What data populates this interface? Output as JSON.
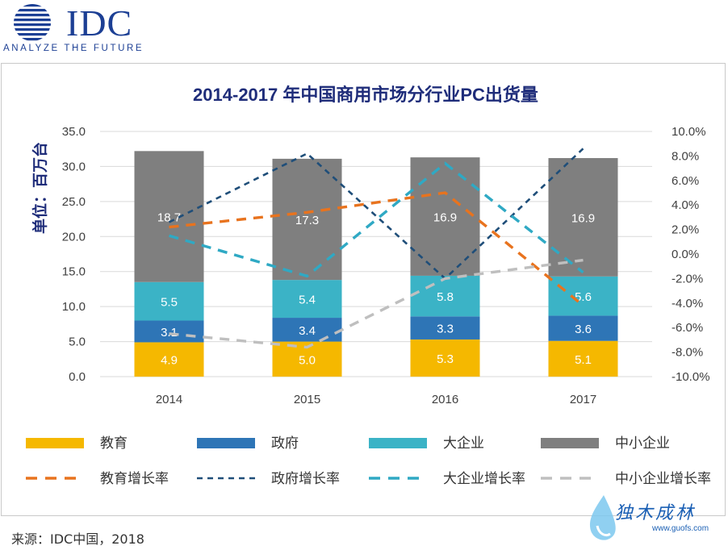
{
  "logo": {
    "name": "IDC",
    "tagline": "ANALYZE THE FUTURE"
  },
  "source": "来源：IDC中国，2018",
  "watermark": {
    "text": "独木成林",
    "url": "www.guofs.com"
  },
  "colors": {
    "edu": "#f5b800",
    "gov": "#2e75b6",
    "large": "#3bb3c6",
    "sme": "#7f7f7f",
    "edu_rate": "#e8731e",
    "gov_rate": "#1f4e79",
    "large_rate": "#2fa9c4",
    "sme_rate": "#bfbfbf",
    "title": "#1f2d7a",
    "axis_text": "#404040",
    "grid": "#d9d9d9"
  },
  "chart_data": {
    "type": "bar",
    "stacked": true,
    "title": "2014-2017 年中国商用市场分行业PC出货量",
    "ylabel": "单位：百万台",
    "categories": [
      "2014",
      "2015",
      "2016",
      "2017"
    ],
    "ylim": [
      0,
      35
    ],
    "yticks": [
      "35.0",
      "30.0",
      "25.0",
      "20.0",
      "15.0",
      "10.0",
      "5.0",
      "0.0"
    ],
    "y2lim": [
      -10,
      10
    ],
    "y2ticks": [
      "10.0%",
      "8.0%",
      "6.0%",
      "4.0%",
      "2.0%",
      "0.0%",
      "-2.0%",
      "-4.0%",
      "-6.0%",
      "-8.0%",
      "-10.0%"
    ],
    "series": [
      {
        "name": "教育",
        "key": "edu",
        "values": [
          4.9,
          5.0,
          5.3,
          5.1
        ],
        "labels": [
          "4.9",
          "5.0",
          "5.3",
          "5.1"
        ]
      },
      {
        "name": "政府",
        "key": "gov",
        "values": [
          3.1,
          3.4,
          3.3,
          3.6
        ],
        "labels": [
          "3.1",
          "3.4",
          "3.3",
          "3.6"
        ]
      },
      {
        "name": "大企业",
        "key": "large",
        "values": [
          5.5,
          5.4,
          5.8,
          5.6
        ],
        "labels": [
          "5.5",
          "5.4",
          "5.8",
          "5.6"
        ]
      },
      {
        "name": "中小企业",
        "key": "sme",
        "values": [
          18.7,
          17.3,
          16.9,
          16.9
        ],
        "labels": [
          "18.7",
          "17.3",
          "16.9",
          "16.9"
        ]
      }
    ],
    "line_series": [
      {
        "name": "教育增长率",
        "key": "edu_rate",
        "values": [
          2.2,
          3.4,
          5.0,
          -4.2
        ]
      },
      {
        "name": "政府增长率",
        "key": "gov_rate",
        "values": [
          2.6,
          8.2,
          -2.0,
          8.6
        ]
      },
      {
        "name": "大企业增长率",
        "key": "large_rate",
        "values": [
          1.5,
          -1.8,
          7.4,
          -1.5
        ]
      },
      {
        "name": "中小企业增长率",
        "key": "sme_rate",
        "values": [
          -6.5,
          -7.6,
          -2.0,
          -0.5
        ]
      }
    ]
  }
}
